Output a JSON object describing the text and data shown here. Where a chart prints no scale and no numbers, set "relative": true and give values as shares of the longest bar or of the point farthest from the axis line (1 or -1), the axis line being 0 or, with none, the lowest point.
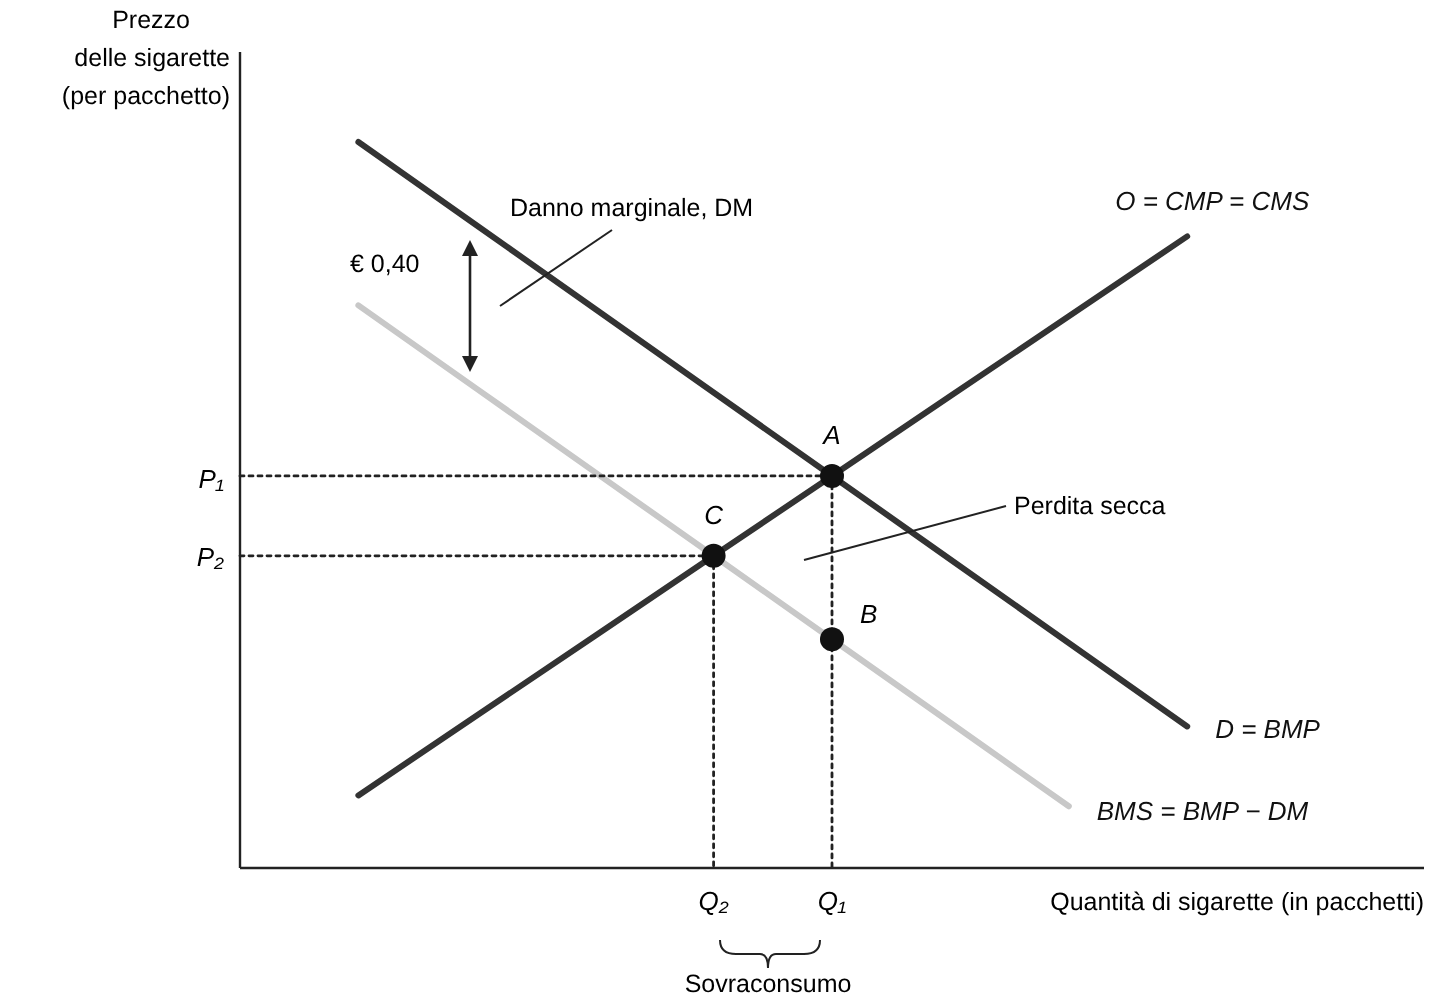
{
  "chart_data": {
    "type": "line",
    "relative": true,
    "ylabel": "Prezzo\ndelle sigarette\n(per pacchetto)",
    "xlabel": "Quantità di sigarette (in pacchetti)",
    "categories": [
      null,
      null,
      null,
      null,
      "Q₂",
      "Q₁",
      null,
      null,
      null,
      null,
      null
    ],
    "series": [
      {
        "name": "D = BMP",
        "color": "#333333",
        "values": [
          null,
          1.0,
          0.885,
          0.77,
          0.655,
          0.54,
          0.425,
          0.31,
          0.195,
          null,
          null
        ]
      },
      {
        "name": "O = CMP = CMS",
        "color": "#333333",
        "values": [
          null,
          0.1,
          0.21,
          0.32,
          0.43,
          0.54,
          0.65,
          0.76,
          0.87,
          null,
          null
        ]
      },
      {
        "name": "BMS = BMP − DM",
        "color": "#c8c8c8",
        "values": [
          null,
          0.775,
          0.66,
          0.545,
          0.43,
          0.315,
          0.2,
          0.085,
          null,
          null,
          null
        ]
      },
      {
        "color": "#222222",
        "line_style": "dotted",
        "values": [
          0.54,
          0.54,
          0.54,
          0.54,
          0.54,
          0.54,
          null,
          null,
          null,
          null,
          null
        ]
      },
      {
        "color": "#222222",
        "line_style": "dotted",
        "values": [
          0.43,
          0.43,
          0.43,
          0.43,
          0.43,
          null,
          null,
          null,
          null,
          null,
          null
        ]
      },
      {
        "color": "#222222",
        "line_style": "dotted",
        "x": [
          "Q₁",
          "Q₁"
        ],
        "values": [
          0.54,
          0
        ]
      },
      {
        "color": "#222222",
        "line_style": "dotted",
        "x": [
          "Q₂",
          "Q₂"
        ],
        "values": [
          0.43,
          0
        ]
      },
      {
        "type": "scatter",
        "color": "#111111",
        "marker": "circle",
        "x": [
          "Q₁",
          "Q₂",
          "Q₁"
        ],
        "values": [
          0.54,
          0.43,
          0.315
        ]
      }
    ],
    "annotations": [
      {
        "text": "A",
        "x": "Q₁",
        "y": 0.54
      },
      {
        "text": "C",
        "x": "Q₂",
        "y": 0.43
      },
      {
        "text": "B",
        "x": "Q₁",
        "y": 0.315
      },
      "P₁",
      "P₂",
      "Danno marginale, DM",
      "€ 0,40",
      "Perdita secca",
      "Sovraconsumo"
    ]
  }
}
